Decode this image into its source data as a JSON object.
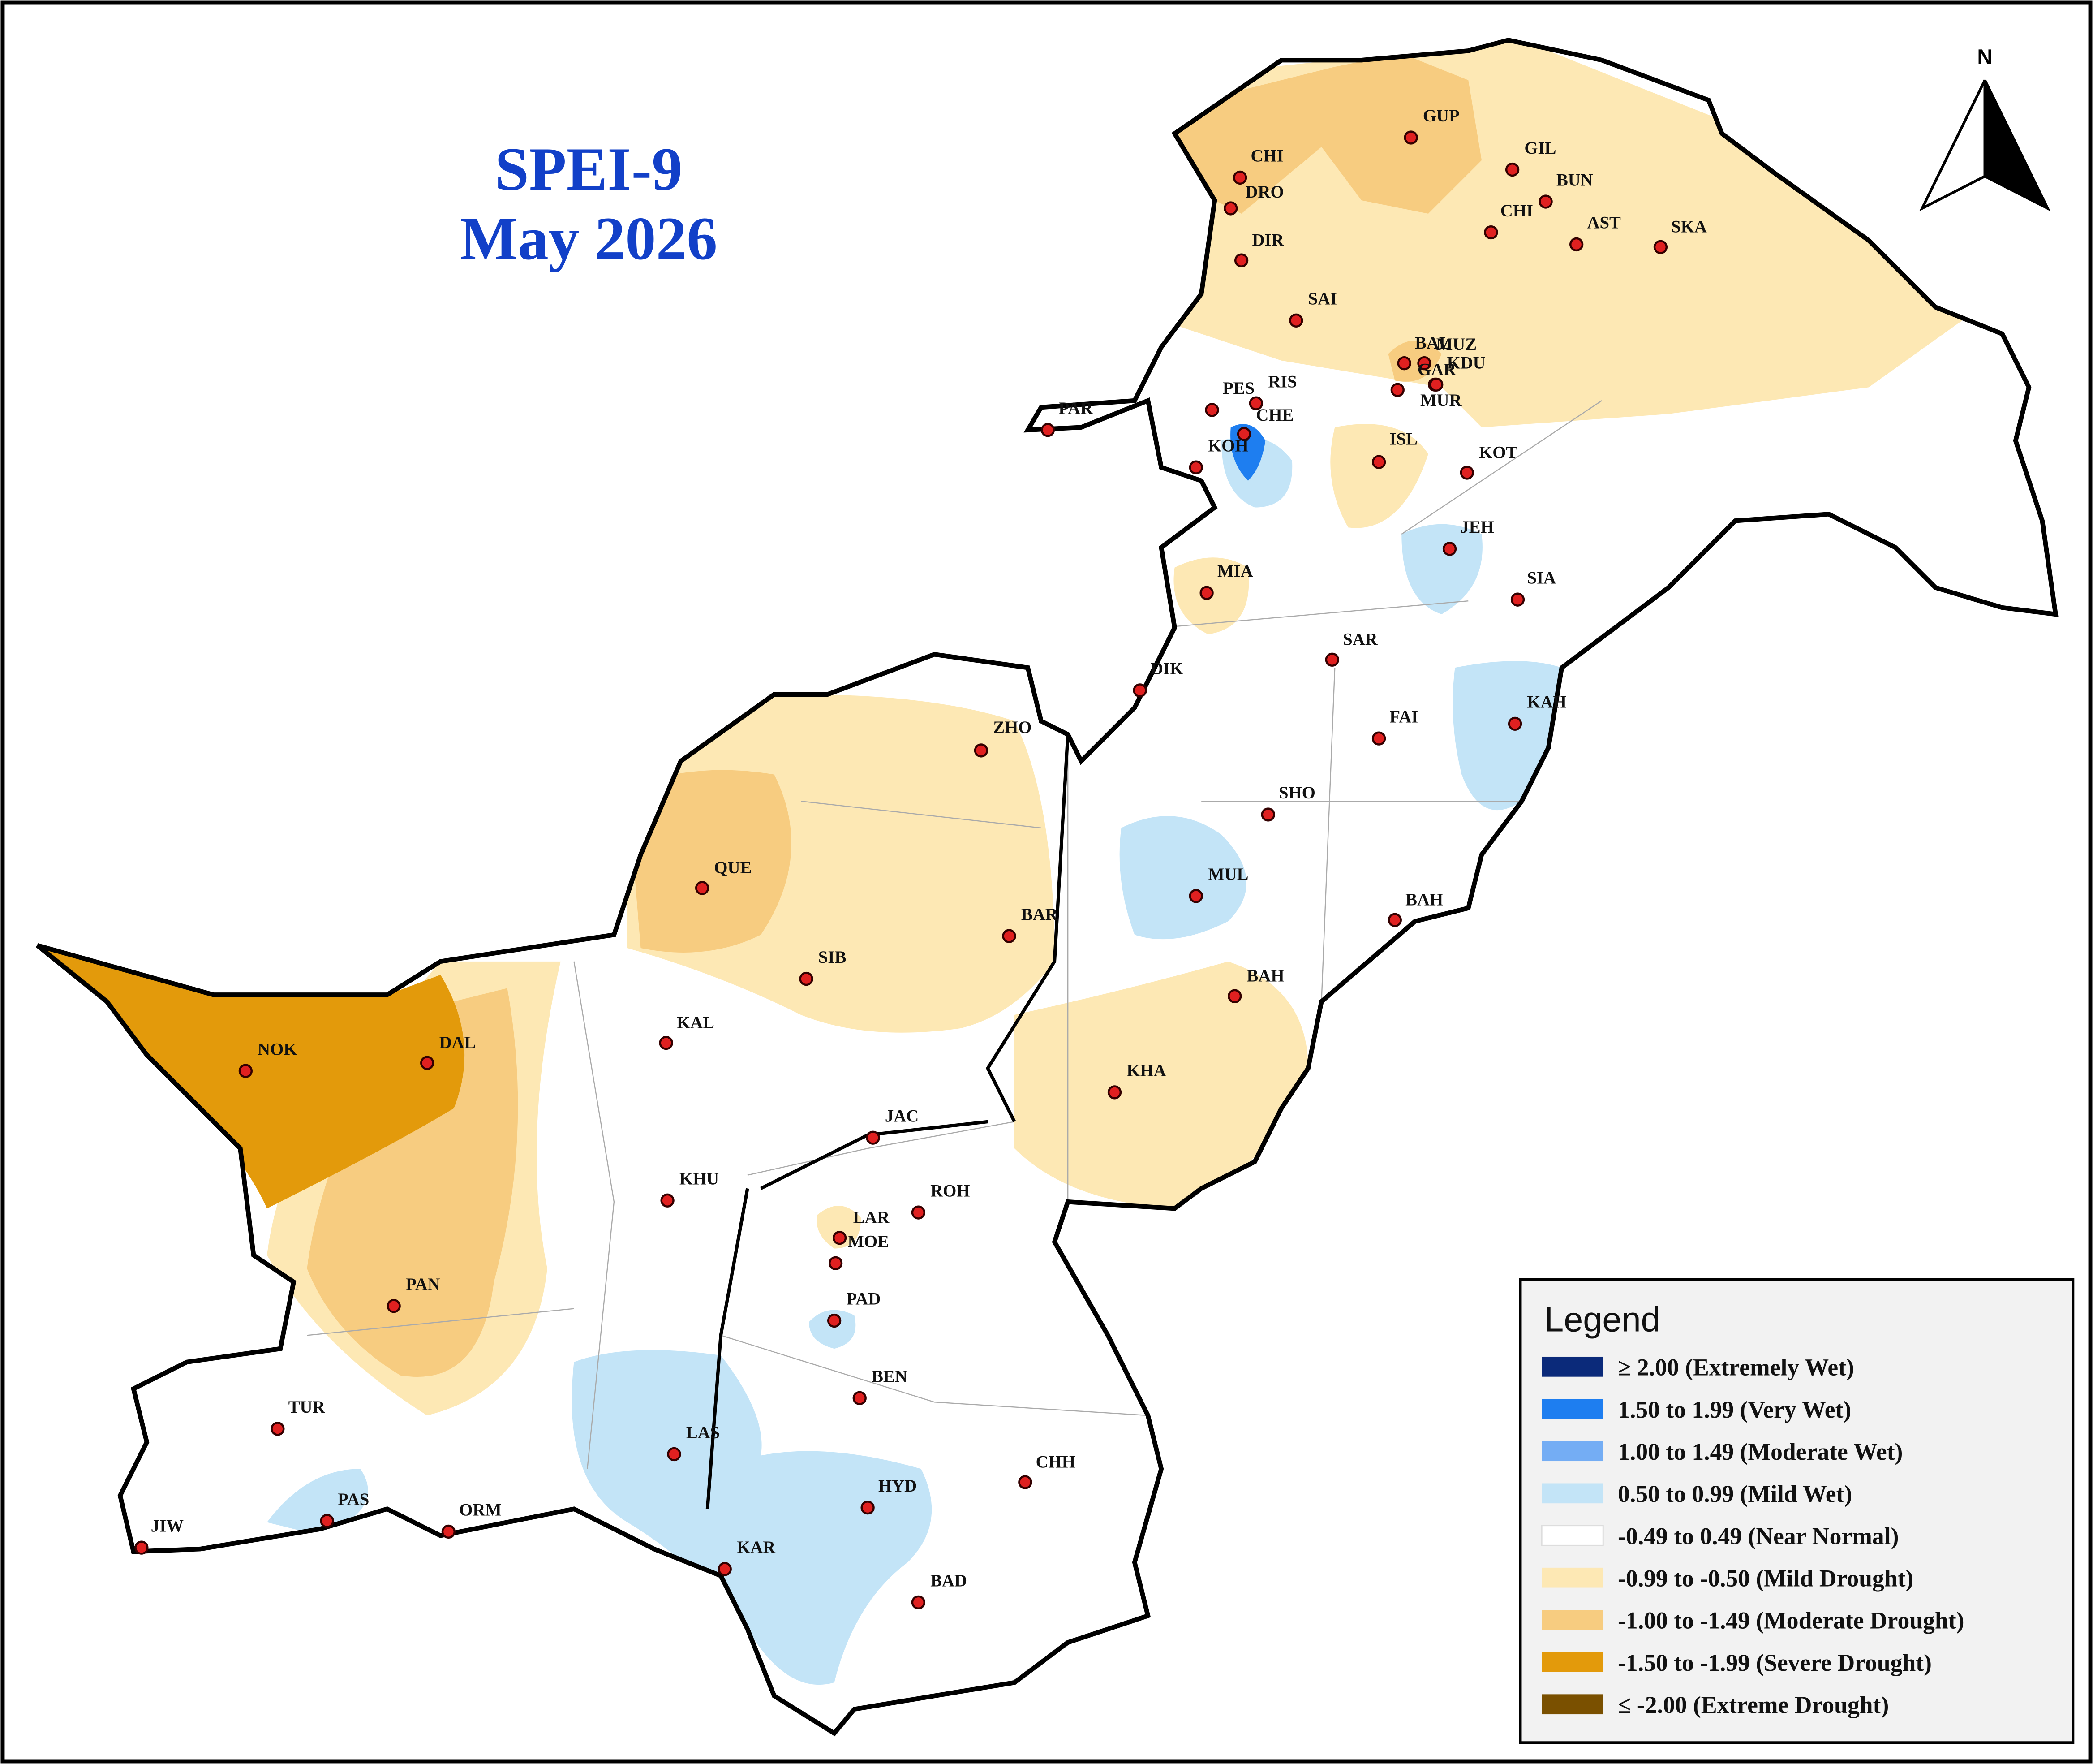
{
  "title": [
    "SPEI-9",
    "May 2026"
  ],
  "north": "N",
  "legend": {
    "title": "Legend",
    "items": [
      {
        "label": "≥ 2.00 (Extremely Wet)",
        "color": "#0b2a7a"
      },
      {
        "label": "1.50 to 1.99 (Very Wet)",
        "color": "#1e7ef0"
      },
      {
        "label": "1.00 to 1.49 (Moderate Wet)",
        "color": "#74adf4"
      },
      {
        "label": "0.50 to 0.99 (Mild Wet)",
        "color": "#c3e4f7"
      },
      {
        "label": "-0.49 to 0.49 (Near Normal)",
        "color": "#ffffff"
      },
      {
        "label": "-0.99 to -0.50 (Mild Drought)",
        "color": "#fde8b4"
      },
      {
        "label": "-1.00 to -1.49 (Moderate Drought)",
        "color": "#f7cc80"
      },
      {
        "label": "-1.50 to -1.99 (Severe Drought)",
        "color": "#e39a0b"
      },
      {
        "label": "≤ -2.00 (Extreme Drought)",
        "color": "#7a5000"
      }
    ]
  },
  "stations": [
    {
      "label": "CHI"
    },
    {
      "label": "DRO"
    },
    {
      "label": "DIR"
    },
    {
      "label": "GUP"
    },
    {
      "label": "GIL"
    },
    {
      "label": "BUN"
    },
    {
      "label": "CHI"
    },
    {
      "label": "AST"
    },
    {
      "label": "SKA"
    },
    {
      "label": "SAI"
    },
    {
      "label": "BAL"
    },
    {
      "label": "MUZ"
    },
    {
      "label": "GAR"
    },
    {
      "label": "KDU"
    },
    {
      "label": "PES"
    },
    {
      "label": "RIS"
    },
    {
      "label": "CHE"
    },
    {
      "label": "KOH"
    },
    {
      "label": "MUR"
    },
    {
      "label": "ISL"
    },
    {
      "label": "KOT"
    },
    {
      "label": "PAR"
    },
    {
      "label": "JEH"
    },
    {
      "label": "SIA"
    },
    {
      "label": "MIA"
    },
    {
      "label": "SAR"
    },
    {
      "label": "DIK"
    },
    {
      "label": "FAI"
    },
    {
      "label": "KAH"
    },
    {
      "label": "ZHO"
    },
    {
      "label": "SHO"
    },
    {
      "label": "MUL"
    },
    {
      "label": "QUE"
    },
    {
      "label": "BAR"
    },
    {
      "label": "SIB"
    },
    {
      "label": "BAH"
    },
    {
      "label": "BAH"
    },
    {
      "label": "KAL"
    },
    {
      "label": "NOK"
    },
    {
      "label": "DAL"
    },
    {
      "label": "KHA"
    },
    {
      "label": "JAC"
    },
    {
      "label": "KHU"
    },
    {
      "label": "ROH"
    },
    {
      "label": "LAR"
    },
    {
      "label": "MOE"
    },
    {
      "label": "PAD"
    },
    {
      "label": "PAN"
    },
    {
      "label": "BEN"
    },
    {
      "label": "TUR"
    },
    {
      "label": "LAS"
    },
    {
      "label": "CHH"
    },
    {
      "label": "HYD"
    },
    {
      "label": "PAS"
    },
    {
      "label": "ORM"
    },
    {
      "label": "JIW"
    },
    {
      "label": "KAR"
    },
    {
      "label": "BAD"
    }
  ]
}
